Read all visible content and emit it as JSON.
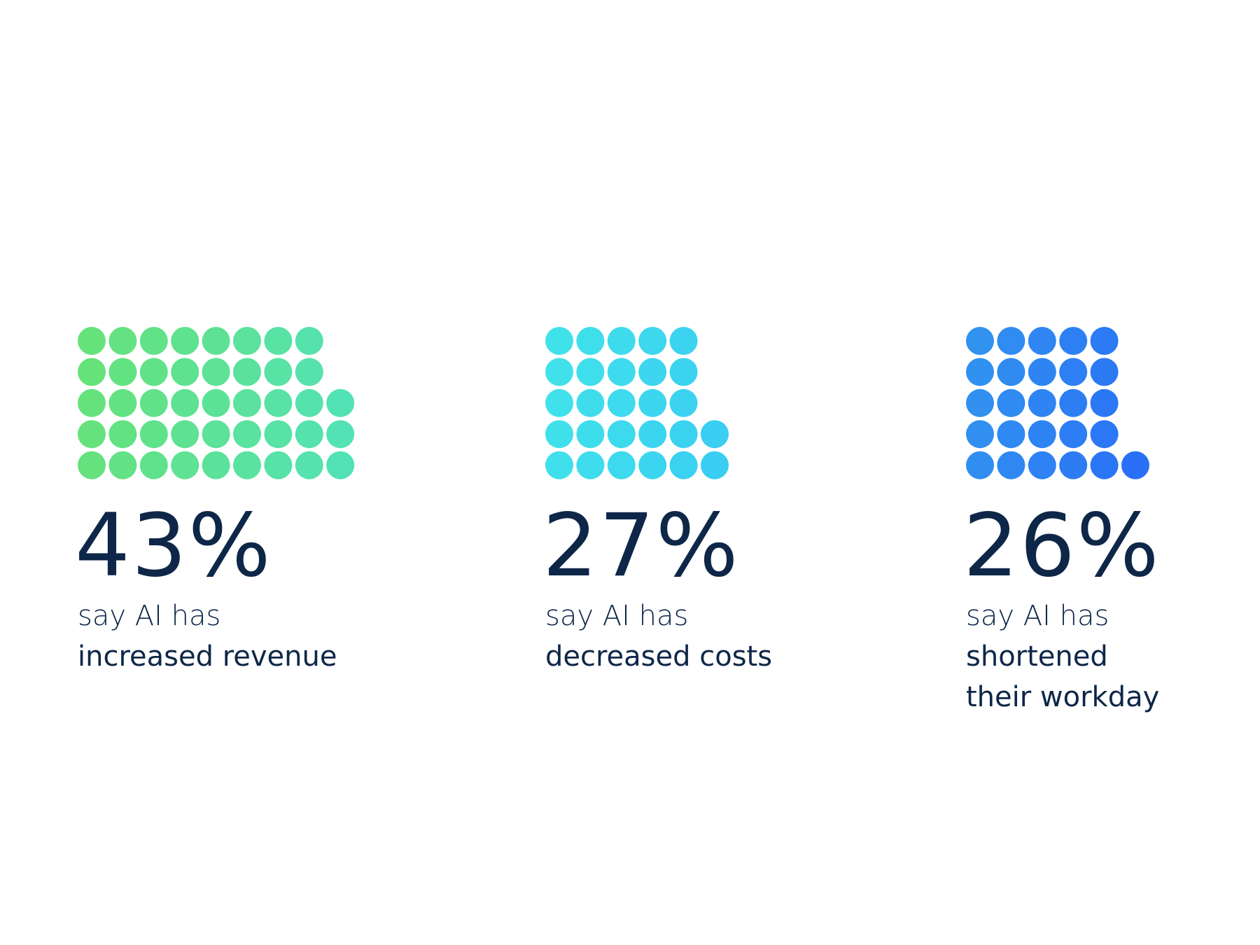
{
  "chart_data": [
    {
      "type": "dots",
      "value": 43,
      "value_label": "43%",
      "intro": "say AI has",
      "label_lines": [
        "increased revenue"
      ],
      "colors": [
        "#66e27a",
        "#52e2b6"
      ]
    },
    {
      "type": "dots",
      "value": 27,
      "value_label": "27%",
      "intro": "say AI has",
      "label_lines": [
        "decreased costs"
      ],
      "colors": [
        "#40e2ea",
        "#3acdf2"
      ]
    },
    {
      "type": "dots",
      "value": 26,
      "value_label": "26%",
      "intro": "say AI has",
      "label_lines": [
        "shortened",
        "their workday"
      ],
      "colors": [
        "#3192f0",
        "#2a6ff6"
      ]
    }
  ]
}
